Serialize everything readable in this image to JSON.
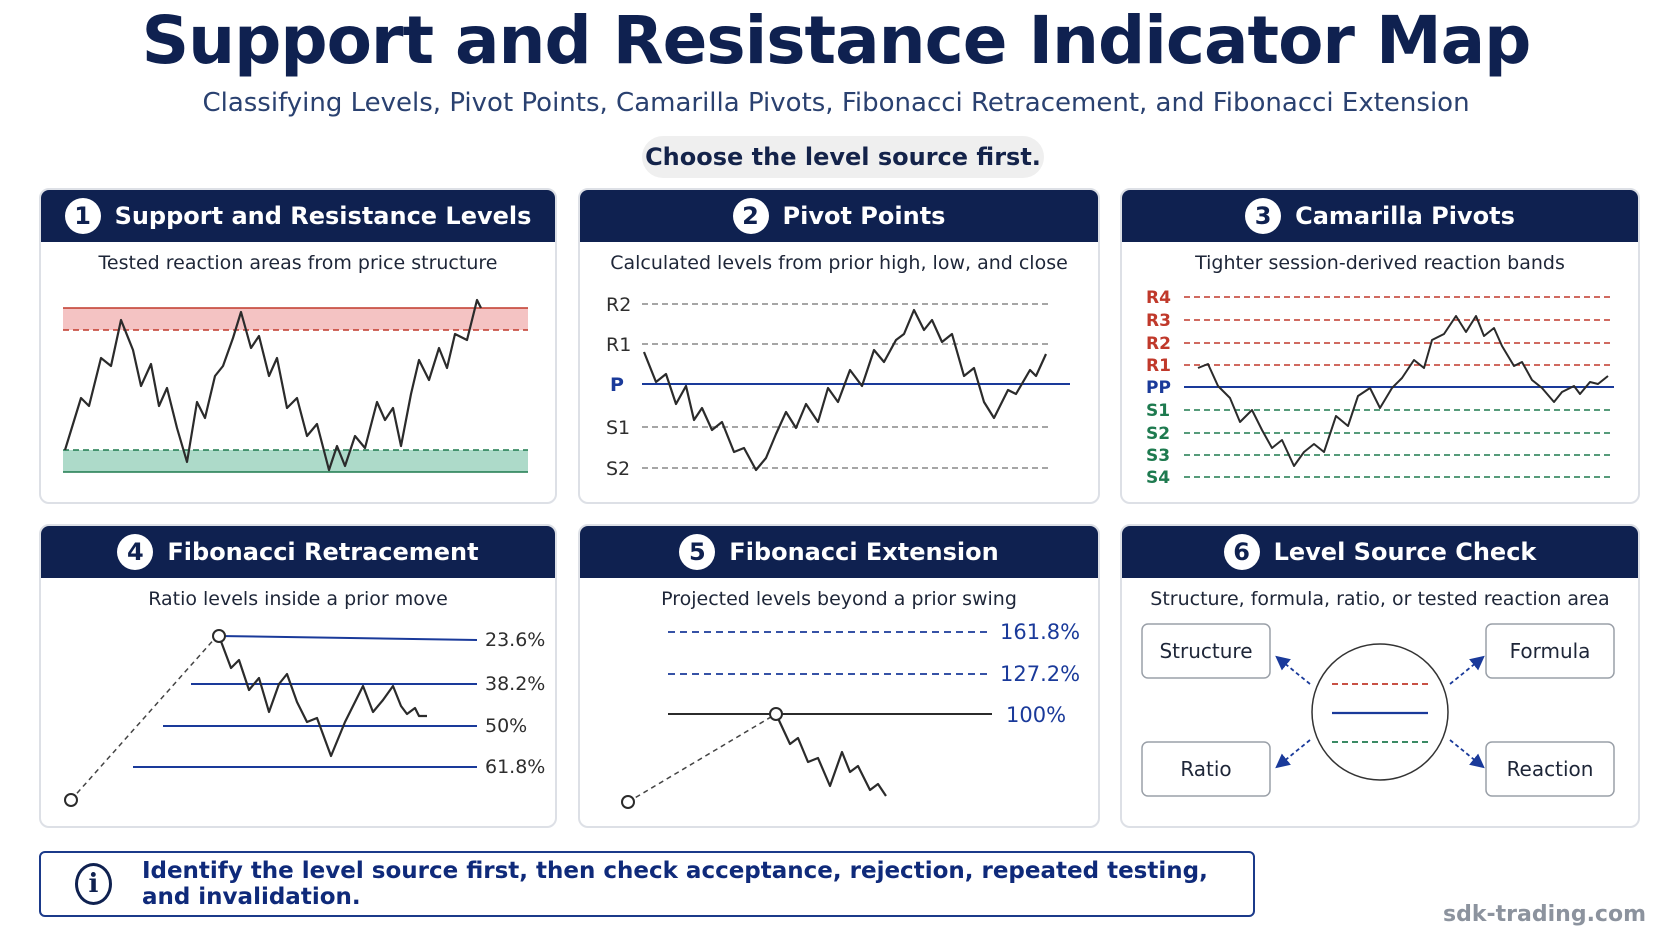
{
  "title": "Support and Resistance Indicator Map",
  "subtitle": "Classifying Levels, Pivot Points, Camarilla Pivots, Fibonacci Retracement, and Fibonacci Extension",
  "banner": "Choose the level source first.",
  "colors": {
    "navy": "#0f2150",
    "resistance": "#c0392b",
    "support": "#1e7a4f",
    "pivot": "#1a3a9a"
  },
  "panels": [
    {
      "number": "1",
      "title": "Support and Resistance Levels",
      "subtitle": "Tested reaction areas from price structure"
    },
    {
      "number": "2",
      "title": "Pivot Points",
      "subtitle": "Calculated levels from prior high, low, and close",
      "levels": [
        "R2",
        "R1",
        "P",
        "S1",
        "S2"
      ]
    },
    {
      "number": "3",
      "title": "Camarilla Pivots",
      "subtitle": "Tighter session-derived reaction bands",
      "levels": [
        "R4",
        "R3",
        "R2",
        "R1",
        "PP",
        "S1",
        "S2",
        "S3",
        "S4"
      ]
    },
    {
      "number": "4",
      "title": "Fibonacci Retracement",
      "subtitle": "Ratio levels inside a prior move",
      "levels": [
        "23.6%",
        "38.2%",
        "50%",
        "61.8%"
      ]
    },
    {
      "number": "5",
      "title": "Fibonacci Extension",
      "subtitle": "Projected levels beyond a prior swing",
      "levels": [
        "161.8%",
        "127.2%",
        "100%"
      ]
    },
    {
      "number": "6",
      "title": "Level Source Check",
      "subtitle": "Structure, formula, ratio, or tested reaction area",
      "boxes": [
        "Structure",
        "Formula",
        "Ratio",
        "Reaction"
      ]
    }
  ],
  "note": "Identify the level source first, then check acceptance, rejection, repeated testing, and invalidation.",
  "note_icon": "info-icon",
  "watermark": "sdk-trading.com"
}
